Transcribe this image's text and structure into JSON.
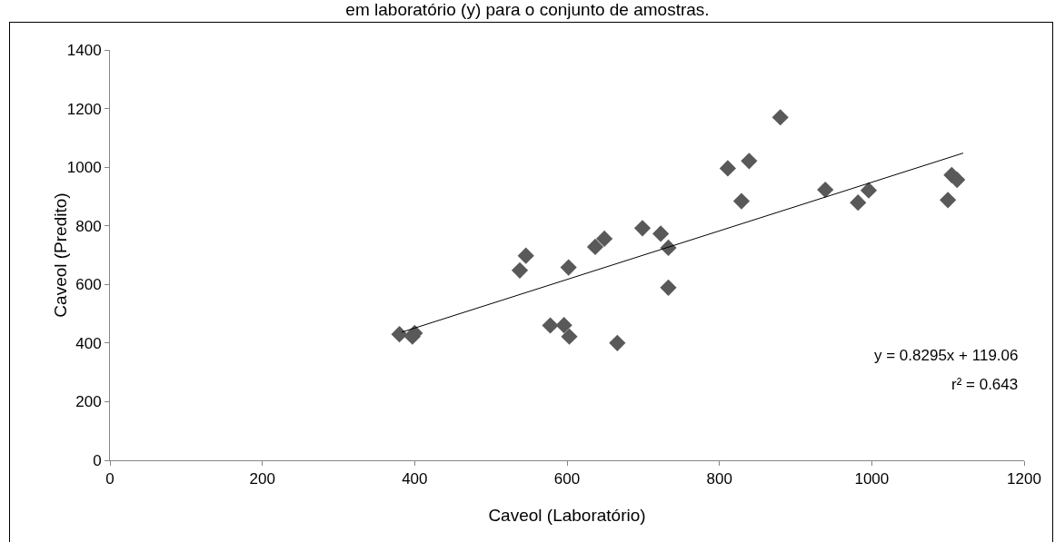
{
  "chart_data": {
    "type": "scatter",
    "title": "em laboratório (y) para o conjunto de amostras.",
    "xlabel": "Caveol (Laboratório)",
    "ylabel": "Caveol (Predito)",
    "xlim": [
      0,
      1200
    ],
    "xticks": [
      0,
      200,
      400,
      600,
      800,
      1000,
      1200
    ],
    "ylim": [
      0,
      1400
    ],
    "yticks": [
      0,
      200,
      400,
      600,
      800,
      1000,
      1200,
      1400
    ],
    "grid": false,
    "annotations": [
      "y = 0.8295x + 119.06",
      "r² = 0.643"
    ],
    "series": [
      {
        "marker": "diamond",
        "color": "#595959",
        "x": [
          380,
          397,
          400,
          538,
          546,
          578,
          596,
          602,
          603,
          637,
          649,
          666,
          699,
          723,
          733,
          733,
          811,
          829,
          839,
          880,
          939,
          982,
          996,
          1100,
          1105,
          1112
        ],
        "values": [
          430,
          422,
          434,
          648,
          698,
          460,
          461,
          658,
          422,
          728,
          756,
          400,
          792,
          773,
          725,
          589,
          996,
          884,
          1021,
          1170,
          923,
          879,
          921,
          888,
          973,
          957
        ]
      },
      {
        "type": "line",
        "color": "#000000",
        "x": [
          383,
          1120
        ],
        "values": [
          437,
          1048
        ]
      }
    ]
  }
}
